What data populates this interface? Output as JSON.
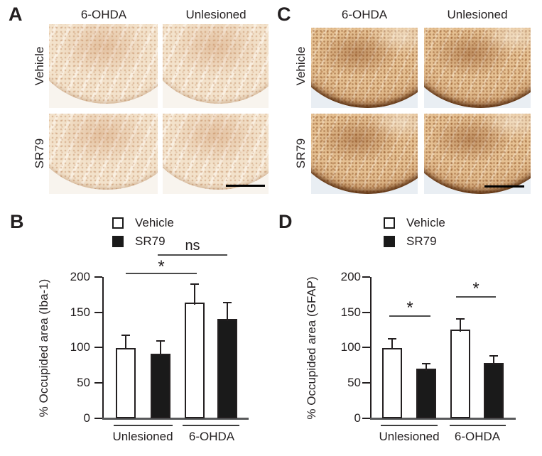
{
  "palette": {
    "text": "#231f20",
    "bar_vehicle_fill": "#ffffff",
    "bar_sr79_fill": "#1a1a1a",
    "axis": "#231f20",
    "baseline": "#58595b",
    "micrograph_a_background": "#f8f4ee",
    "micrograph_a_tissue": "#f3e2cb",
    "micrograph_c_background": "#e9eef3",
    "micrograph_c_tissue": "#e6c193",
    "micrograph_c_rim": "#4b2308"
  },
  "panels": {
    "a": {
      "label": "A",
      "col_headers": [
        "6-OHDA",
        "Unlesioned"
      ],
      "row_headers": [
        "Vehicle",
        "SR79"
      ]
    },
    "b": {
      "label": "B"
    },
    "c": {
      "label": "C",
      "col_headers": [
        "6-OHDA",
        "Unlesioned"
      ],
      "row_headers": [
        "Vehicle",
        "SR79"
      ]
    },
    "d": {
      "label": "D"
    }
  },
  "chart_data": [
    {
      "id": "B",
      "type": "bar",
      "ylabel": "% Occupided area (Iba-1)",
      "ylim": [
        0,
        200
      ],
      "yticks": [
        0,
        50,
        100,
        150,
        200
      ],
      "categories": [
        "Unlesioned",
        "6-OHDA"
      ],
      "series": [
        {
          "name": "Vehicle",
          "fill": "#ffffff",
          "values": [
            100,
            164
          ],
          "errors_upper": [
            18,
            26
          ]
        },
        {
          "name": "SR79",
          "fill": "#1a1a1a",
          "values": [
            91,
            141
          ],
          "errors_upper": [
            19,
            23
          ]
        }
      ],
      "annotations": [
        {
          "label": "*",
          "between": [
            "Vehicle/Unlesioned",
            "Vehicle/6-OHDA"
          ]
        },
        {
          "label": "ns",
          "between": [
            "SR79/Unlesioned",
            "SR79/6-OHDA"
          ]
        }
      ],
      "legend_position": "top",
      "grid": false
    },
    {
      "id": "D",
      "type": "bar",
      "ylabel": "% Occupided area (GFAP)",
      "ylim": [
        0,
        200
      ],
      "yticks": [
        0,
        50,
        100,
        150,
        200
      ],
      "categories": [
        "Unlesioned",
        "6-OHDA"
      ],
      "series": [
        {
          "name": "Vehicle",
          "fill": "#ffffff",
          "values": [
            100,
            126
          ],
          "errors_upper": [
            13,
            15
          ]
        },
        {
          "name": "SR79",
          "fill": "#1a1a1a",
          "values": [
            70,
            78
          ],
          "errors_upper": [
            7,
            10
          ]
        }
      ],
      "annotations": [
        {
          "label": "*",
          "between": [
            "Vehicle/Unlesioned",
            "SR79/Unlesioned"
          ]
        },
        {
          "label": "*",
          "between": [
            "Vehicle/6-OHDA",
            "SR79/6-OHDA"
          ]
        }
      ],
      "legend_position": "top",
      "grid": false
    }
  ]
}
